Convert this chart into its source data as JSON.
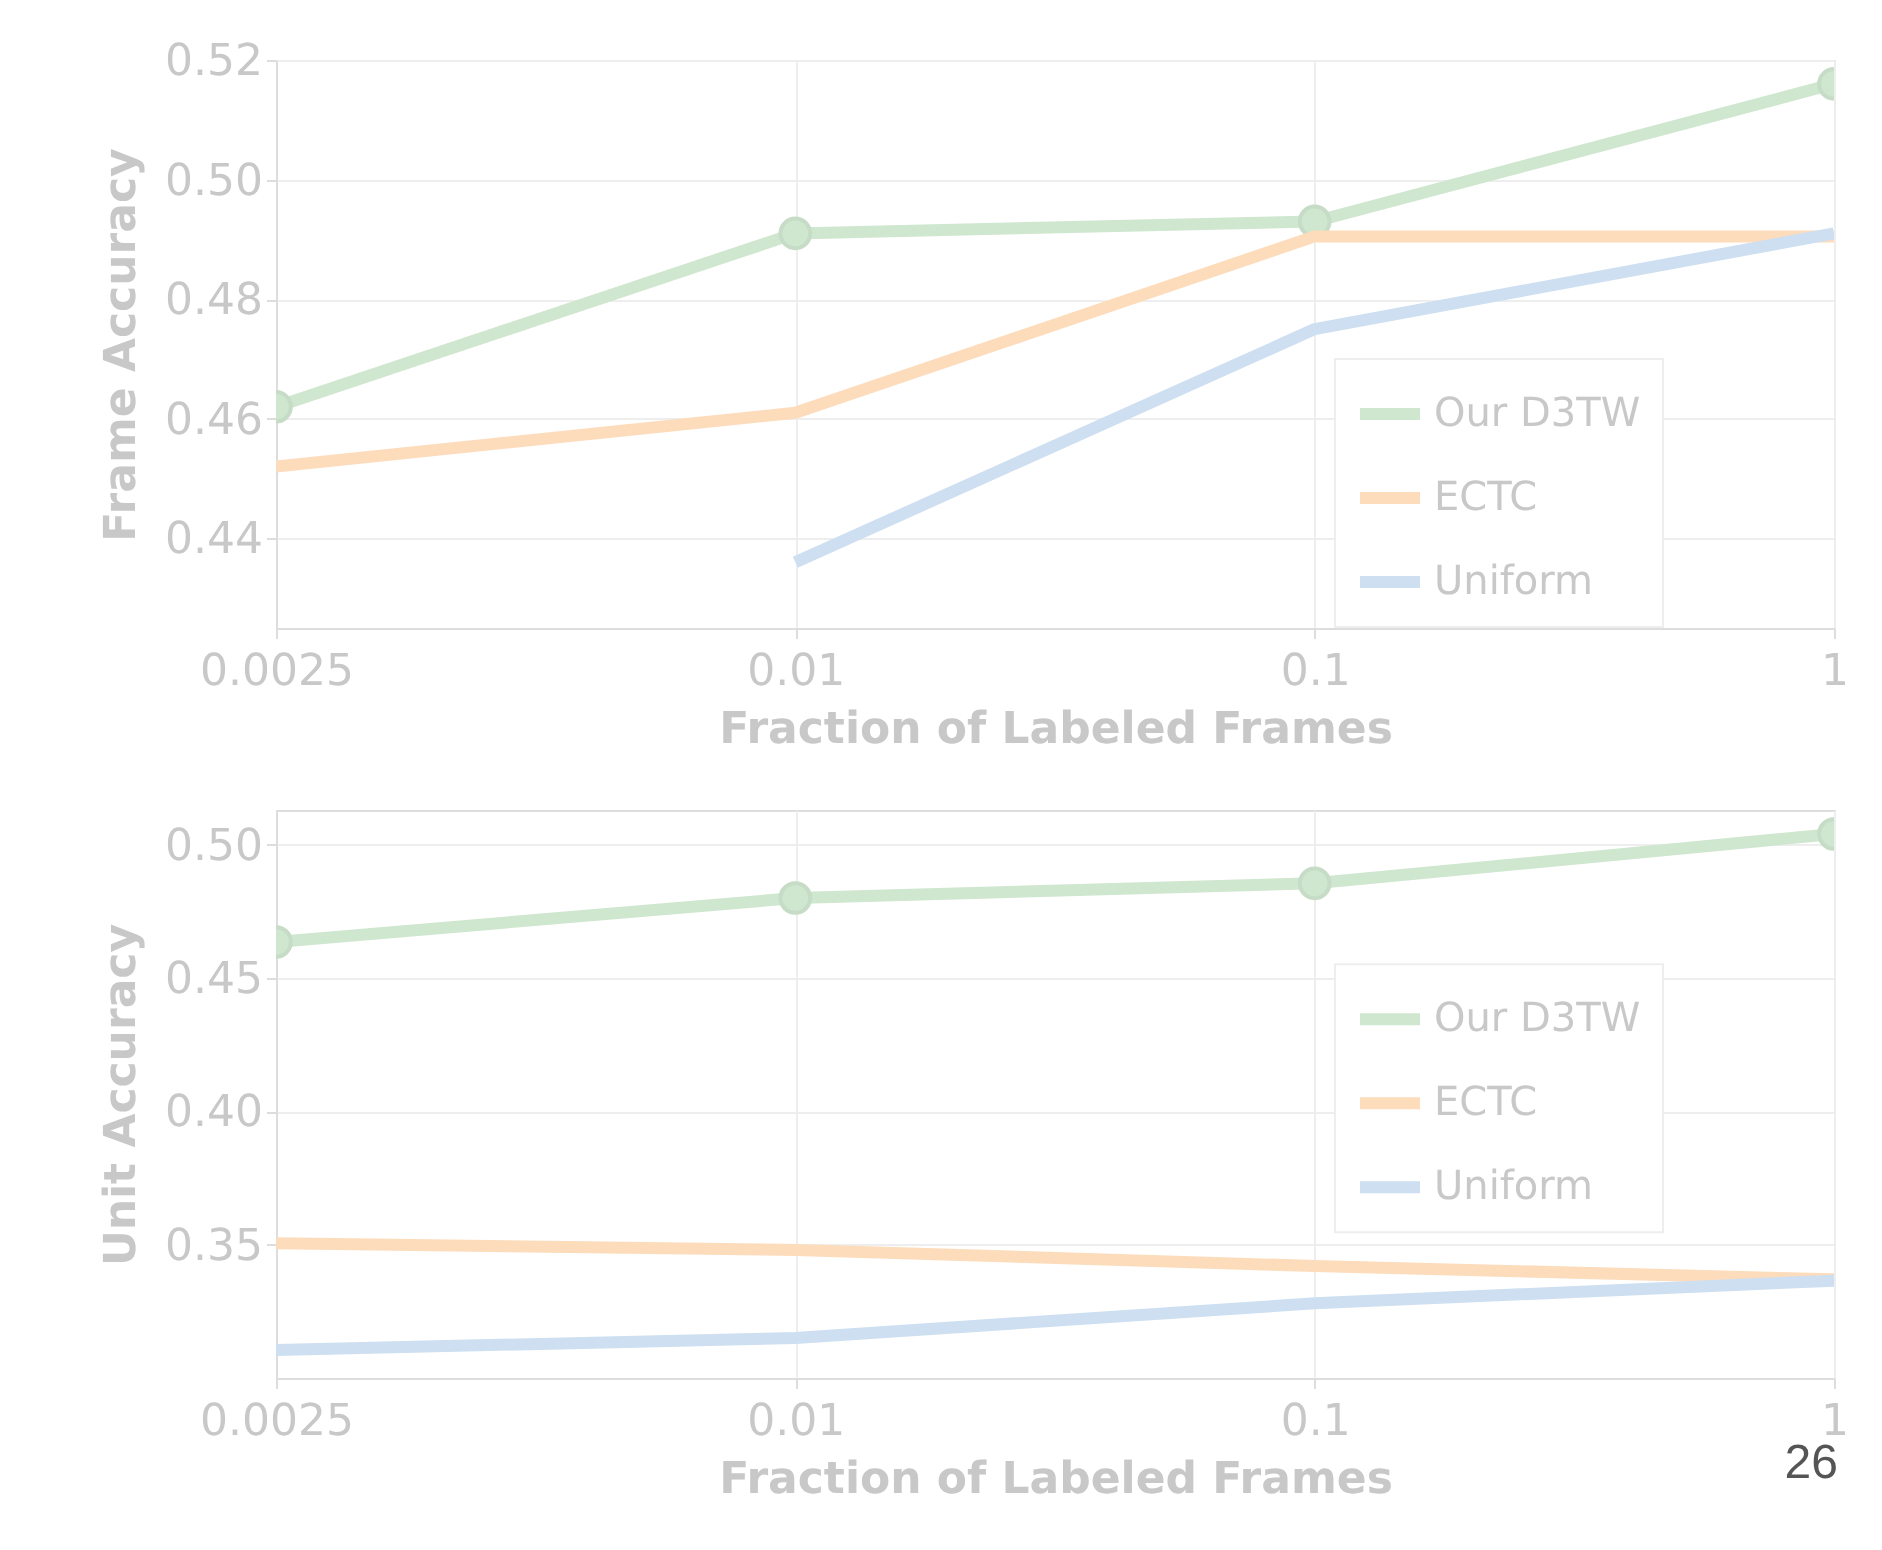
{
  "chart_data": [
    {
      "type": "line",
      "xlabel": "Fraction of Labeled Frames",
      "ylabel": "Frame Accuracy",
      "categories": [
        "0.0025",
        "0.01",
        "0.1",
        "1"
      ],
      "ylim": [
        0.425,
        0.52
      ],
      "yticks": [
        {
          "value": 0.44,
          "label": "0.44"
        },
        {
          "value": 0.46,
          "label": "0.46"
        },
        {
          "value": 0.48,
          "label": "0.48"
        },
        {
          "value": 0.5,
          "label": "0.50"
        },
        {
          "value": 0.52,
          "label": "0.52"
        }
      ],
      "grid": true,
      "legend": "bottom right",
      "line_style": "solid",
      "series": [
        {
          "name": "Our D3TW",
          "color": "#cfe6cf",
          "marker": "circle",
          "values": [
            0.462,
            0.491,
            0.493,
            0.516
          ]
        },
        {
          "name": "ECTC",
          "color": "#fddcbc",
          "marker": "none",
          "values": [
            0.452,
            0.461,
            0.4905,
            0.4905
          ]
        },
        {
          "name": "Uniform",
          "color": "#cddff0",
          "marker": "none",
          "values": [
            null,
            0.436,
            0.475,
            0.491
          ]
        }
      ]
    },
    {
      "type": "line",
      "xlabel": "Fraction of Labeled Frames",
      "ylabel": "Unit Accuracy",
      "categories": [
        "0.0025",
        "0.01",
        "0.1",
        "1"
      ],
      "ylim": [
        0.3,
        0.513
      ],
      "yticks": [
        {
          "value": 0.35,
          "label": "0.35"
        },
        {
          "value": 0.4,
          "label": "0.40"
        },
        {
          "value": 0.45,
          "label": "0.45"
        },
        {
          "value": 0.5,
          "label": "0.50"
        }
      ],
      "grid": true,
      "legend": "right",
      "line_style": "solid",
      "annotations": [
        "26"
      ],
      "series": [
        {
          "name": "Our D3TW",
          "color": "#cfe6cf",
          "marker": "circle",
          "values": [
            0.4635,
            0.48,
            0.4855,
            0.504
          ]
        },
        {
          "name": "ECTC",
          "color": "#fddcbc",
          "marker": "none",
          "values": [
            0.3505,
            0.348,
            0.342,
            0.337
          ]
        },
        {
          "name": "Uniform",
          "color": "#cddff0",
          "marker": "none",
          "values": [
            0.3105,
            0.315,
            0.328,
            0.3365
          ]
        }
      ]
    }
  ]
}
